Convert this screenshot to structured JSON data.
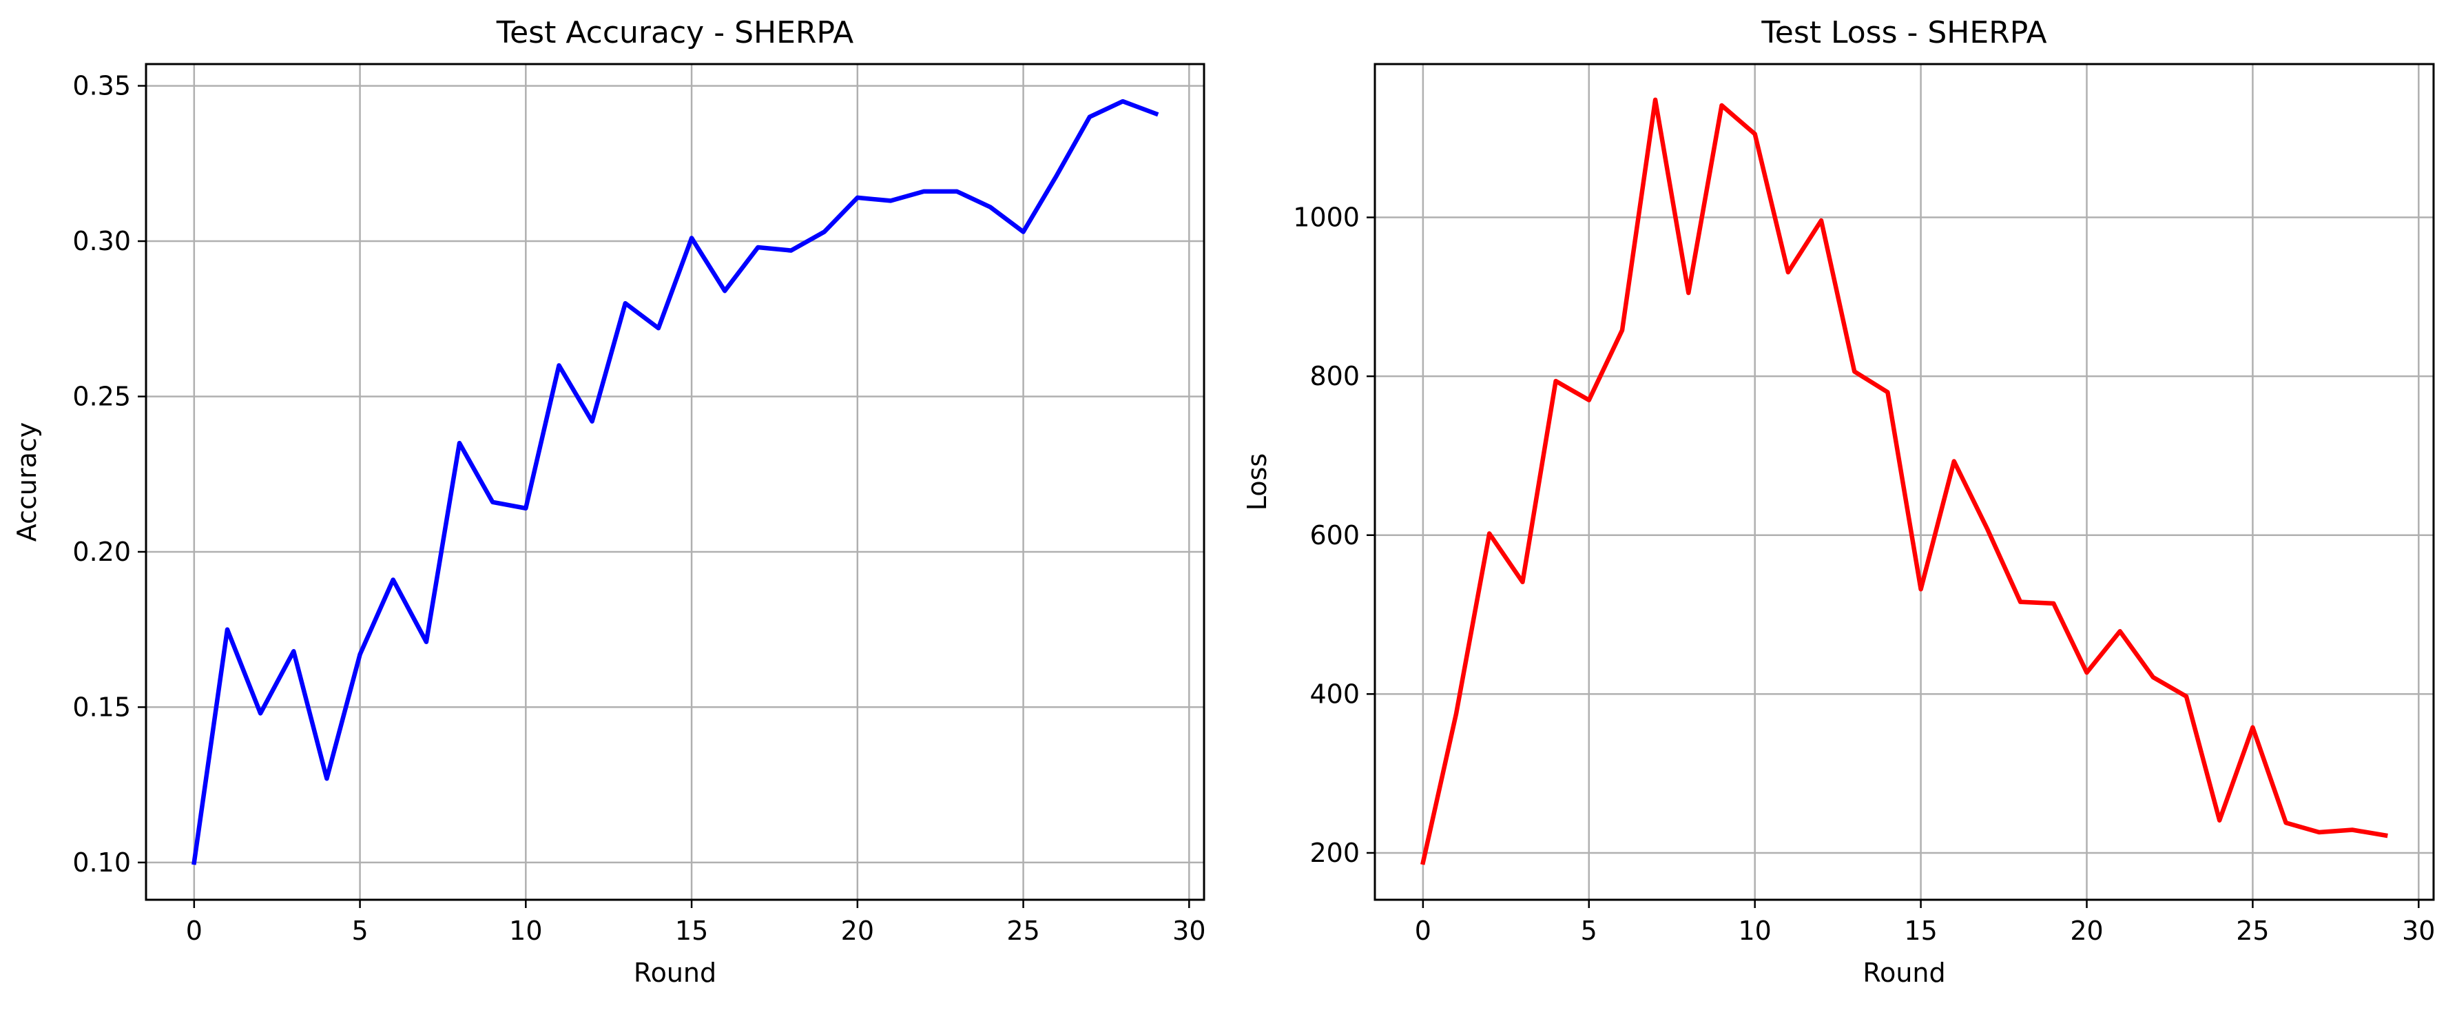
{
  "chart_data": [
    {
      "type": "line",
      "title": "Test Accuracy - SHERPA",
      "xlabel": "Round",
      "ylabel": "Accuracy",
      "xlim": [
        -1.45,
        30.45
      ],
      "ylim": [
        0.088,
        0.357
      ],
      "xticks": [
        0,
        5,
        10,
        15,
        20,
        25,
        30
      ],
      "xtick_labels": [
        "0",
        "5",
        "10",
        "15",
        "20",
        "25",
        "30"
      ],
      "yticks": [
        0.1,
        0.15,
        0.2,
        0.25,
        0.3,
        0.35
      ],
      "ytick_labels": [
        "0.10",
        "0.15",
        "0.20",
        "0.25",
        "0.30",
        "0.35"
      ],
      "grid": true,
      "x": [
        0,
        1,
        2,
        3,
        4,
        5,
        6,
        7,
        8,
        9,
        10,
        11,
        12,
        13,
        14,
        15,
        16,
        17,
        18,
        19,
        20,
        21,
        22,
        23,
        24,
        25,
        26,
        27,
        28,
        29
      ],
      "series": [
        {
          "color": "#0000ff",
          "values": [
            0.1,
            0.175,
            0.148,
            0.168,
            0.127,
            0.167,
            0.191,
            0.171,
            0.235,
            0.216,
            0.214,
            0.26,
            0.242,
            0.28,
            0.272,
            0.301,
            0.284,
            0.298,
            0.297,
            0.303,
            0.314,
            0.313,
            0.316,
            0.316,
            0.311,
            0.303,
            0.321,
            0.34,
            0.345,
            0.341
          ]
        }
      ]
    },
    {
      "type": "line",
      "title": "Test Loss - SHERPA",
      "xlabel": "Round",
      "ylabel": "Loss",
      "xlim": [
        -1.45,
        30.45
      ],
      "ylim": [
        141,
        1193
      ],
      "xticks": [
        0,
        5,
        10,
        15,
        20,
        25,
        30
      ],
      "xtick_labels": [
        "0",
        "5",
        "10",
        "15",
        "20",
        "25",
        "30"
      ],
      "yticks": [
        200,
        400,
        600,
        800,
        1000
      ],
      "ytick_labels": [
        "200",
        "400",
        "600",
        "800",
        "1000"
      ],
      "grid": true,
      "x": [
        0,
        1,
        2,
        3,
        4,
        5,
        6,
        7,
        8,
        9,
        10,
        11,
        12,
        13,
        14,
        15,
        16,
        17,
        18,
        19,
        20,
        21,
        22,
        23,
        24,
        25,
        26,
        27,
        28,
        29
      ],
      "series": [
        {
          "color": "#ff0000",
          "values": [
            188,
            375,
            602,
            541,
            794,
            770,
            858,
            1148,
            905,
            1141,
            1105,
            931,
            996,
            806,
            780,
            532,
            693,
            608,
            516,
            514,
            427,
            479,
            421,
            397,
            241,
            358,
            238,
            226,
            229,
            222
          ]
        }
      ]
    }
  ]
}
